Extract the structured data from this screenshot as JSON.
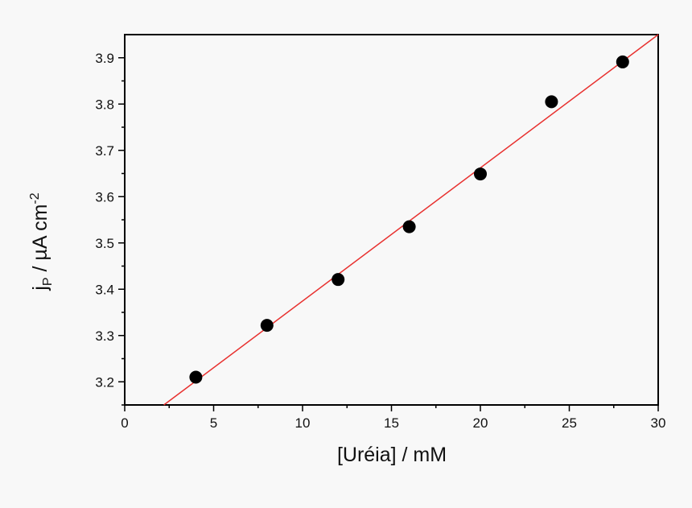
{
  "chart_data": {
    "type": "scatter",
    "x_label": "[Uréia] / mM",
    "y_label": [
      "j",
      "P",
      " / µA cm",
      "-2"
    ],
    "x": [
      4,
      8,
      12,
      16,
      20,
      24,
      28
    ],
    "series": [
      {
        "color": "#000000",
        "values": [
          3.21,
          3.322,
          3.421,
          3.535,
          3.649,
          3.805,
          3.891
        ]
      }
    ],
    "fit": {
      "color": "#e8312f",
      "x": [
        2.2,
        30
      ],
      "values": [
        3.15,
        3.95
      ]
    },
    "xlim": [
      0,
      30
    ],
    "xticks": [
      0,
      5,
      10,
      15,
      20,
      25,
      30
    ],
    "ylim": [
      3.15,
      3.95
    ],
    "yticks": [
      3.2,
      3.3,
      3.4,
      3.5,
      3.6,
      3.7,
      3.8,
      3.9
    ]
  }
}
